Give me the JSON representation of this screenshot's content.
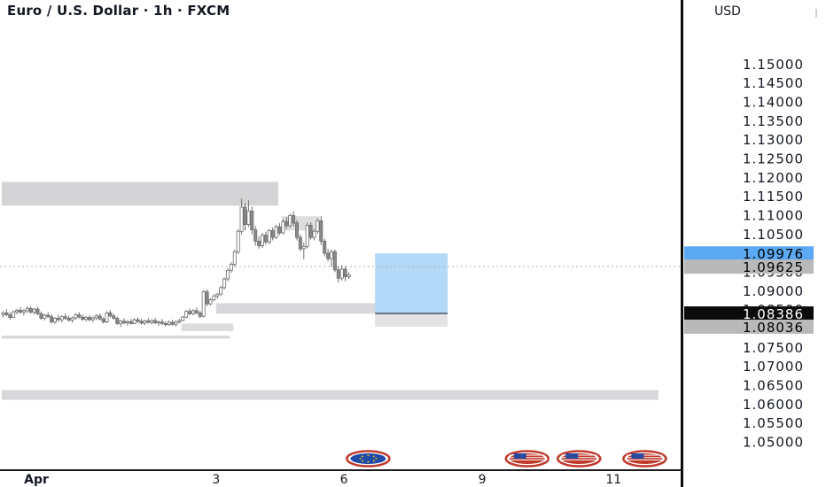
{
  "chart_data": {
    "type": "candlestick",
    "title": "Euro / U.S. Dollar · 1h · FXCM",
    "currency": "USD",
    "y_ticks": [
      "1.15000",
      "1.14500",
      "1.14000",
      "1.13500",
      "1.13000",
      "1.12500",
      "1.12000",
      "1.11500",
      "1.11000",
      "1.10500",
      "1.10000",
      "1.09500",
      "1.09000",
      "1.08500",
      "1.08000",
      "1.07500",
      "1.07000",
      "1.06500",
      "1.06000",
      "1.05500",
      "1.05000"
    ],
    "ylim": [
      1.048,
      1.157
    ],
    "x_ticks": [
      {
        "label": "Apr",
        "bar": 10
      },
      {
        "label": "3",
        "bar": 62
      },
      {
        "label": "6",
        "bar": 99
      },
      {
        "label": "9",
        "bar": 139
      },
      {
        "label": "11",
        "bar": 177
      }
    ],
    "price_labels": [
      {
        "text": "1.09976",
        "value": 1.09976,
        "bg": "#5aa9f2",
        "fg": "#000000"
      },
      {
        "text": "1.09625",
        "value": 1.09625,
        "bg": "#b9b9b9",
        "fg": "#000000"
      },
      {
        "text": "1.08386",
        "value": 1.08386,
        "bg": "#0b0b0b",
        "fg": "#ffffff"
      },
      {
        "text": "1.08036",
        "value": 1.08036,
        "bg": "#b9b9b9",
        "fg": "#000000"
      }
    ],
    "zones": [
      {
        "bar_start": 0,
        "bar_end": 80,
        "y_top": 1.1187,
        "y_bottom": 1.1124,
        "color": "#d4d4d6"
      },
      {
        "bar_start": 62,
        "bar_end": 127,
        "y_top": 1.0866,
        "y_bottom": 1.0838,
        "color": "#d8d8da"
      },
      {
        "bar_start": 52,
        "bar_end": 67,
        "y_top": 1.0812,
        "y_bottom": 1.0792,
        "color": "#dcdcde"
      },
      {
        "bar_start": 0,
        "bar_end": 66,
        "y_top": 1.078,
        "y_bottom": 1.0772,
        "color": "#d8d8da"
      },
      {
        "bar_start": 0,
        "bar_end": 190,
        "y_top": 1.0636,
        "y_bottom": 1.061,
        "color": "#d8d8da"
      },
      {
        "bar_start": 81,
        "bar_end": 92,
        "y_top": 1.1096,
        "y_bottom": 1.1058,
        "color": "#dedede"
      }
    ],
    "position_tool": {
      "bar_start": 108,
      "bar_end": 129,
      "entry": 1.08386,
      "target": 1.09976,
      "stop": 1.08036,
      "target_color": "#b3d9f7",
      "stop_color": "#e3e3e5"
    },
    "current_price": 1.09625,
    "event_markers": [
      {
        "bar": 106,
        "flag": "eu"
      },
      {
        "bar": 152,
        "flag": "us"
      },
      {
        "bar": 167,
        "flag": "us"
      },
      {
        "bar": 186,
        "flag": "us"
      }
    ],
    "ohlc": [
      [
        1.0835,
        1.0845,
        1.0828,
        1.084
      ],
      [
        1.084,
        1.085,
        1.0832,
        1.0835
      ],
      [
        1.0835,
        1.0842,
        1.0822,
        1.0828
      ],
      [
        1.0828,
        1.0846,
        1.0826,
        1.0843
      ],
      [
        1.0843,
        1.0851,
        1.0836,
        1.0847
      ],
      [
        1.0847,
        1.0855,
        1.0838,
        1.0842
      ],
      [
        1.0842,
        1.085,
        1.0833,
        1.0846
      ],
      [
        1.0846,
        1.0858,
        1.084,
        1.0852
      ],
      [
        1.0852,
        1.0857,
        1.0838,
        1.0842
      ],
      [
        1.0842,
        1.0853,
        1.0836,
        1.085
      ],
      [
        1.085,
        1.0856,
        1.0834,
        1.0838
      ],
      [
        1.0838,
        1.0844,
        1.0822,
        1.0826
      ],
      [
        1.0826,
        1.0838,
        1.082,
        1.0834
      ],
      [
        1.0834,
        1.0842,
        1.0826,
        1.083
      ],
      [
        1.083,
        1.0837,
        1.0812,
        1.0816
      ],
      [
        1.0816,
        1.0829,
        1.0811,
        1.0826
      ],
      [
        1.0826,
        1.0835,
        1.0818,
        1.0822
      ],
      [
        1.0822,
        1.0834,
        1.0815,
        1.083
      ],
      [
        1.083,
        1.0838,
        1.0822,
        1.0826
      ],
      [
        1.0826,
        1.0833,
        1.0817,
        1.0821
      ],
      [
        1.0821,
        1.083,
        1.0814,
        1.0827
      ],
      [
        1.0827,
        1.0839,
        1.0822,
        1.0835
      ],
      [
        1.0835,
        1.0842,
        1.0825,
        1.0829
      ],
      [
        1.0829,
        1.0836,
        1.0819,
        1.0823
      ],
      [
        1.0823,
        1.0832,
        1.0817,
        1.0828
      ],
      [
        1.0828,
        1.0834,
        1.0818,
        1.0822
      ],
      [
        1.0822,
        1.0831,
        1.0816,
        1.0827
      ],
      [
        1.0827,
        1.0837,
        1.0821,
        1.0832
      ],
      [
        1.0832,
        1.0838,
        1.082,
        1.0824
      ],
      [
        1.0824,
        1.0829,
        1.0812,
        1.0816
      ],
      [
        1.0816,
        1.0845,
        1.0813,
        1.084
      ],
      [
        1.084,
        1.0848,
        1.0828,
        1.0832
      ],
      [
        1.0832,
        1.0838,
        1.0822,
        1.0826
      ],
      [
        1.0826,
        1.083,
        1.0808,
        1.0812
      ],
      [
        1.0812,
        1.0822,
        1.0803,
        1.0818
      ],
      [
        1.0818,
        1.0826,
        1.081,
        1.0814
      ],
      [
        1.0814,
        1.0821,
        1.0806,
        1.0817
      ],
      [
        1.0817,
        1.0824,
        1.0809,
        1.0812
      ],
      [
        1.0812,
        1.0826,
        1.081,
        1.0822
      ],
      [
        1.0822,
        1.0828,
        1.0813,
        1.0818
      ],
      [
        1.0818,
        1.0825,
        1.0809,
        1.0813
      ],
      [
        1.0813,
        1.0822,
        1.0808,
        1.0819
      ],
      [
        1.0819,
        1.0827,
        1.0812,
        1.0815
      ],
      [
        1.0815,
        1.0823,
        1.0809,
        1.082
      ],
      [
        1.082,
        1.0826,
        1.081,
        1.0814
      ],
      [
        1.0814,
        1.082,
        1.0806,
        1.0816
      ],
      [
        1.0816,
        1.0824,
        1.0808,
        1.0812
      ],
      [
        1.0812,
        1.0818,
        1.0804,
        1.0809
      ],
      [
        1.0809,
        1.082,
        1.0806,
        1.0815
      ],
      [
        1.0815,
        1.0822,
        1.0806,
        1.081
      ],
      [
        1.081,
        1.0819,
        1.0804,
        1.0816
      ],
      [
        1.0816,
        1.0824,
        1.0812,
        1.082
      ],
      [
        1.082,
        1.0832,
        1.0818,
        1.0829
      ],
      [
        1.0829,
        1.0848,
        1.0826,
        1.0844
      ],
      [
        1.0844,
        1.0852,
        1.0834,
        1.0838
      ],
      [
        1.0838,
        1.085,
        1.0834,
        1.0846
      ],
      [
        1.0846,
        1.0854,
        1.0836,
        1.084
      ],
      [
        1.084,
        1.0846,
        1.0826,
        1.0831
      ],
      [
        1.0831,
        1.0901,
        1.0828,
        1.0896
      ],
      [
        1.0896,
        1.0902,
        1.0858,
        1.0864
      ],
      [
        1.0864,
        1.0879,
        1.086,
        1.0875
      ],
      [
        1.0875,
        1.0889,
        1.0871,
        1.0885
      ],
      [
        1.0885,
        1.0893,
        1.0878,
        1.089
      ],
      [
        1.089,
        1.0912,
        1.0886,
        1.0907
      ],
      [
        1.0907,
        1.0934,
        1.0902,
        1.093
      ],
      [
        1.093,
        1.0958,
        1.0924,
        1.0953
      ],
      [
        1.0953,
        1.0974,
        1.0946,
        1.0969
      ],
      [
        1.0969,
        1.1008,
        1.0962,
        1.1002
      ],
      [
        1.1002,
        1.1062,
        1.0996,
        1.1056
      ],
      [
        1.1056,
        1.1142,
        1.1048,
        1.112
      ],
      [
        1.112,
        1.1131,
        1.1058,
        1.1074
      ],
      [
        1.1074,
        1.1138,
        1.1068,
        1.111
      ],
      [
        1.111,
        1.1121,
        1.1048,
        1.106
      ],
      [
        1.106,
        1.107,
        1.1018,
        1.103
      ],
      [
        1.103,
        1.1043,
        1.101,
        1.1018
      ],
      [
        1.1018,
        1.1052,
        1.1012,
        1.1046
      ],
      [
        1.1046,
        1.1055,
        1.102,
        1.1028
      ],
      [
        1.1028,
        1.1063,
        1.1022,
        1.1058
      ],
      [
        1.1058,
        1.1066,
        1.1032,
        1.104
      ],
      [
        1.104,
        1.1074,
        1.1036,
        1.1068
      ],
      [
        1.1068,
        1.1078,
        1.1046,
        1.1052
      ],
      [
        1.1052,
        1.1088,
        1.1048,
        1.1082
      ],
      [
        1.1082,
        1.1094,
        1.1062,
        1.1071
      ],
      [
        1.1071,
        1.1103,
        1.1066,
        1.1098
      ],
      [
        1.1098,
        1.1109,
        1.107,
        1.1078
      ],
      [
        1.1078,
        1.1086,
        1.1032,
        1.104
      ],
      [
        1.104,
        1.1048,
        1.1003,
        1.101
      ],
      [
        1.101,
        1.1026,
        1.0982,
        1.1016
      ],
      [
        1.1016,
        1.1079,
        1.1011,
        1.1072
      ],
      [
        1.1072,
        1.108,
        1.1034,
        1.104
      ],
      [
        1.104,
        1.1062,
        1.1032,
        1.1056
      ],
      [
        1.1056,
        1.1091,
        1.105,
        1.1084
      ],
      [
        1.1084,
        1.1096,
        1.102,
        1.103
      ],
      [
        1.103,
        1.1036,
        1.099,
        1.0998
      ],
      [
        1.0998,
        1.101,
        1.0976,
        1.0984
      ],
      [
        1.0984,
        1.1008,
        1.0962,
        1.1002
      ],
      [
        1.1002,
        1.1008,
        1.0948,
        1.0954
      ],
      [
        1.0954,
        1.0964,
        1.092,
        1.0932
      ],
      [
        1.0932,
        1.0966,
        1.0926,
        1.0956
      ],
      [
        1.0956,
        1.0964,
        1.0924,
        1.0936
      ],
      [
        1.0936,
        1.0948,
        1.093,
        1.0941
      ]
    ]
  }
}
